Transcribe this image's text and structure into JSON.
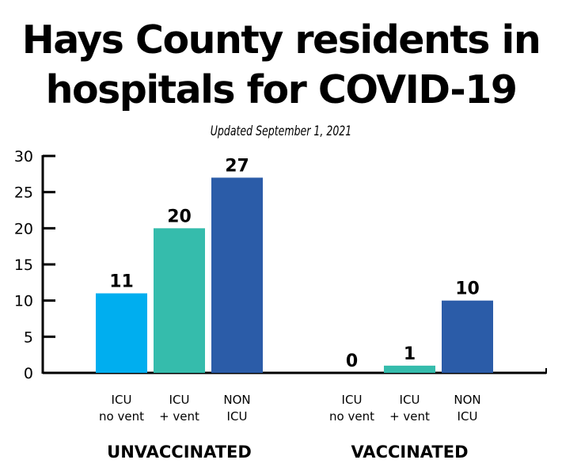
{
  "header": {
    "title_line1": "Hays County residents in",
    "title_line2": "hospitals for COVID-19",
    "subtitle": "Updated September 1, 2021"
  },
  "chart_data": {
    "type": "bar",
    "title": "Hays County residents in hospitals for COVID-19",
    "subtitle": "Updated September 1, 2021",
    "xlabel": "",
    "ylabel": "",
    "ylim": [
      0,
      30
    ],
    "yticks": [
      0,
      5,
      10,
      15,
      20,
      25,
      30
    ],
    "grid": false,
    "legend": "none",
    "groups": [
      {
        "name": "UNVACCINATED",
        "bars": [
          {
            "label_line1": "ICU",
            "label_line2": "no vent",
            "value": 11,
            "color": "#00aeef"
          },
          {
            "label_line1": "ICU",
            "label_line2": "+ vent",
            "value": 20,
            "color": "#35bcac"
          },
          {
            "label_line1": "NON",
            "label_line2": "ICU",
            "value": 27,
            "color": "#2b5ca8"
          }
        ]
      },
      {
        "name": "VACCINATED",
        "bars": [
          {
            "label_line1": "ICU",
            "label_line2": "no vent",
            "value": 0,
            "color": "#00aeef"
          },
          {
            "label_line1": "ICU",
            "label_line2": "+ vent",
            "value": 1,
            "color": "#35bcac"
          },
          {
            "label_line1": "NON",
            "label_line2": "ICU",
            "value": 10,
            "color": "#2b5ca8"
          }
        ]
      }
    ]
  }
}
